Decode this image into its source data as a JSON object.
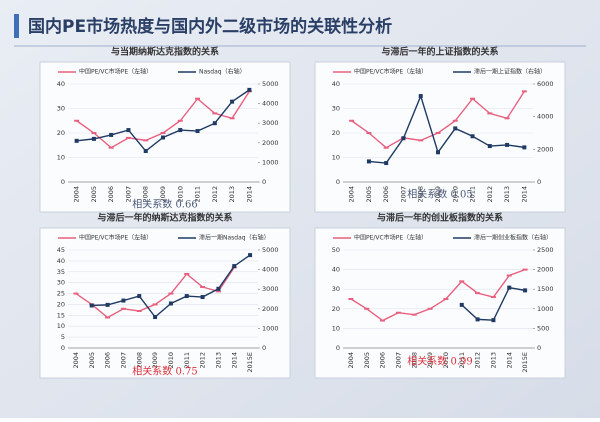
{
  "title": "国内PE市场热度与国内外二级市场的关联性分析",
  "chart_data": [
    {
      "type": "line",
      "title": "与当期纳斯达克指数的关系",
      "annotation": "相关系数 0.66",
      "annotation_color": "#4a5878",
      "categories": [
        "2004",
        "2005",
        "2006",
        "2007",
        "2008",
        "2009",
        "2010",
        "2011",
        "2012",
        "2013",
        "2014"
      ],
      "series": [
        {
          "name": "中国PE/VC市场PE（左轴）",
          "color": "#e8607f",
          "values": [
            25,
            20,
            14,
            18,
            17,
            20,
            25,
            34,
            28,
            26,
            37
          ]
        },
        {
          "name": "Nasdaq（右轴）",
          "color": "#1f3a63",
          "axis": "y2",
          "values": [
            2100,
            2200,
            2400,
            2650,
            1580,
            2270,
            2650,
            2600,
            3000,
            4100,
            4700
          ]
        }
      ],
      "ylim": [
        0,
        40
      ],
      "yticks": [
        0,
        10,
        20,
        30,
        40
      ],
      "y2lim": [
        0,
        5000
      ],
      "y2ticks": [
        0,
        1000,
        2000,
        3000,
        4000,
        5000
      ]
    },
    {
      "type": "line",
      "title": "与滞后一年的上证指数的关系",
      "annotation": "相关系数 0.05",
      "annotation_color": "#4a5878",
      "categories": [
        "2004",
        "2005",
        "2006",
        "2007",
        "2008",
        "2009",
        "2010",
        "2011",
        "2012",
        "2013",
        "2014"
      ],
      "series": [
        {
          "name": "中国PE/VC市场PE（左轴）",
          "color": "#e8607f",
          "values": [
            25,
            20,
            14,
            18,
            17,
            20,
            25,
            34,
            28,
            26,
            37
          ]
        },
        {
          "name": "滞后一期上证指数（右轴）",
          "color": "#1f3a63",
          "axis": "y2",
          "values": [
            null,
            1260,
            1160,
            2680,
            5260,
            1820,
            3280,
            2800,
            2200,
            2270,
            2120
          ]
        }
      ],
      "ylim": [
        0,
        40
      ],
      "yticks": [
        0,
        10,
        20,
        30,
        40
      ],
      "y2lim": [
        0,
        6000
      ],
      "y2ticks": [
        0,
        2000,
        4000,
        6000
      ]
    },
    {
      "type": "line",
      "title": "与滞后一年的纳斯达克指数的关系",
      "annotation": "相关系数 0.75",
      "annotation_color": "#d8323c",
      "categories": [
        "2004",
        "2005",
        "2006",
        "2007",
        "2008",
        "2009",
        "2010",
        "2011",
        "2012",
        "2013",
        "2014",
        "2015E"
      ],
      "series": [
        {
          "name": "中国PE/VC市场PE（左轴）",
          "color": "#e8607f",
          "values": [
            25,
            20,
            14,
            18,
            17,
            20,
            25,
            34,
            28,
            26,
            37,
            null
          ]
        },
        {
          "name": "滞后一期Nasdaq（右轴）",
          "color": "#1f3a63",
          "axis": "y2",
          "values": [
            null,
            2170,
            2200,
            2420,
            2650,
            1580,
            2270,
            2650,
            2600,
            3020,
            4180,
            4740
          ]
        }
      ],
      "ylim": [
        0,
        45
      ],
      "yticks": [
        0,
        5,
        10,
        15,
        20,
        25,
        30,
        35,
        40,
        45
      ],
      "y2lim": [
        0,
        5000
      ],
      "y2ticks": [
        0,
        1000,
        2000,
        3000,
        4000,
        5000
      ]
    },
    {
      "type": "line",
      "title": "与滞后一年的创业板指数的关系",
      "annotation": "相关系数 0.99",
      "annotation_color": "#d8323c",
      "categories": [
        "2004",
        "2005",
        "2006",
        "2007",
        "2008",
        "2009",
        "2010",
        "2011",
        "2012",
        "2013",
        "2014",
        "2015E"
      ],
      "series": [
        {
          "name": "中国PE/VC市场PE（左轴）",
          "color": "#e8607f",
          "values": [
            25,
            20,
            14,
            18,
            17,
            20,
            25,
            34,
            28,
            26,
            37,
            40
          ]
        },
        {
          "name": "滞后一期创业板指数（右轴）",
          "color": "#1f3a63",
          "axis": "y2",
          "values": [
            null,
            null,
            null,
            null,
            null,
            null,
            null,
            1100,
            730,
            710,
            1540,
            1470
          ]
        }
      ],
      "ylim": [
        0,
        50
      ],
      "yticks": [
        0,
        10,
        20,
        30,
        40,
        50
      ],
      "y2lim": [
        0,
        2500
      ],
      "y2ticks": [
        0,
        500,
        1000,
        1500,
        2000,
        2500
      ]
    }
  ]
}
